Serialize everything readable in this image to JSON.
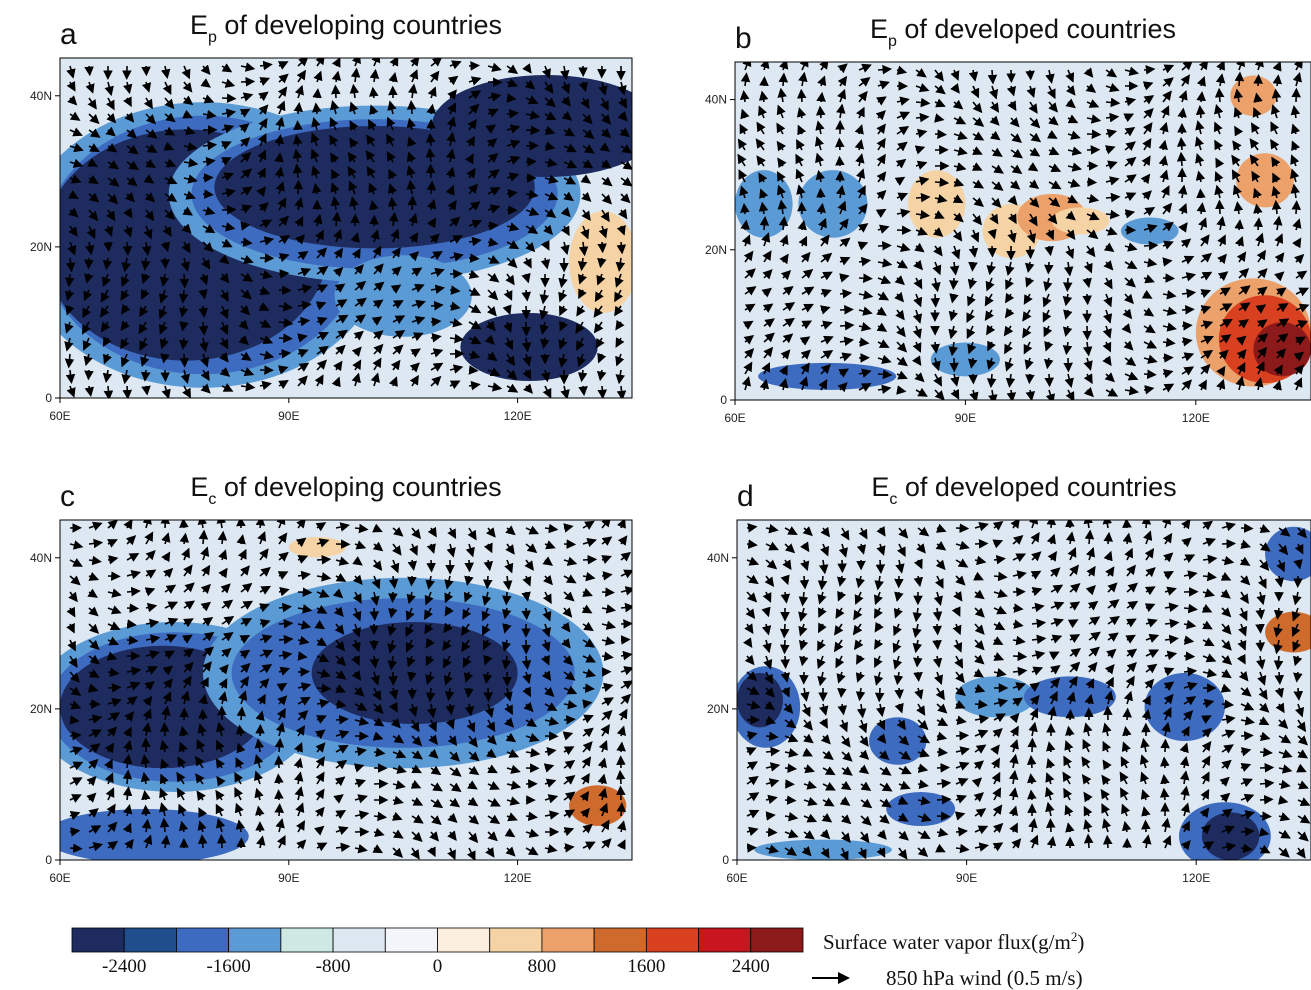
{
  "panels": [
    {
      "letter": "a",
      "symbol": "E",
      "sub": "p",
      "title": " of developing countries"
    },
    {
      "letter": "b",
      "symbol": "E",
      "sub": "p",
      "title": " of developed countries"
    },
    {
      "letter": "c",
      "symbol": "E",
      "sub": "c",
      "title": " of developing countries"
    },
    {
      "letter": "d",
      "symbol": "E",
      "sub": "c",
      "title": " of developed countries"
    }
  ],
  "x_ticks": [
    "60E",
    "90E",
    "120E"
  ],
  "y_ticks": [
    "0",
    "20N",
    "40N"
  ],
  "colorbar": {
    "colors": [
      "#1d2b5e",
      "#1f4e8c",
      "#3d6bc0",
      "#5b9bd5",
      "#cfe8e4",
      "#dde8f3",
      "#f2f6fa",
      "#fbeedd",
      "#f6d3a4",
      "#eca06a",
      "#cf6a2d",
      "#d8401f",
      "#c7161f",
      "#8c1a1a"
    ],
    "labels": [
      "-2400",
      "-1600",
      "-800",
      "0",
      "800",
      "1600",
      "2400"
    ]
  },
  "legend": {
    "flux": "Surface water vapor flux(g/m",
    "flux_sup": "2",
    "flux_end": ")",
    "wind": "850 hPa wind (0.5 m/s)"
  }
}
